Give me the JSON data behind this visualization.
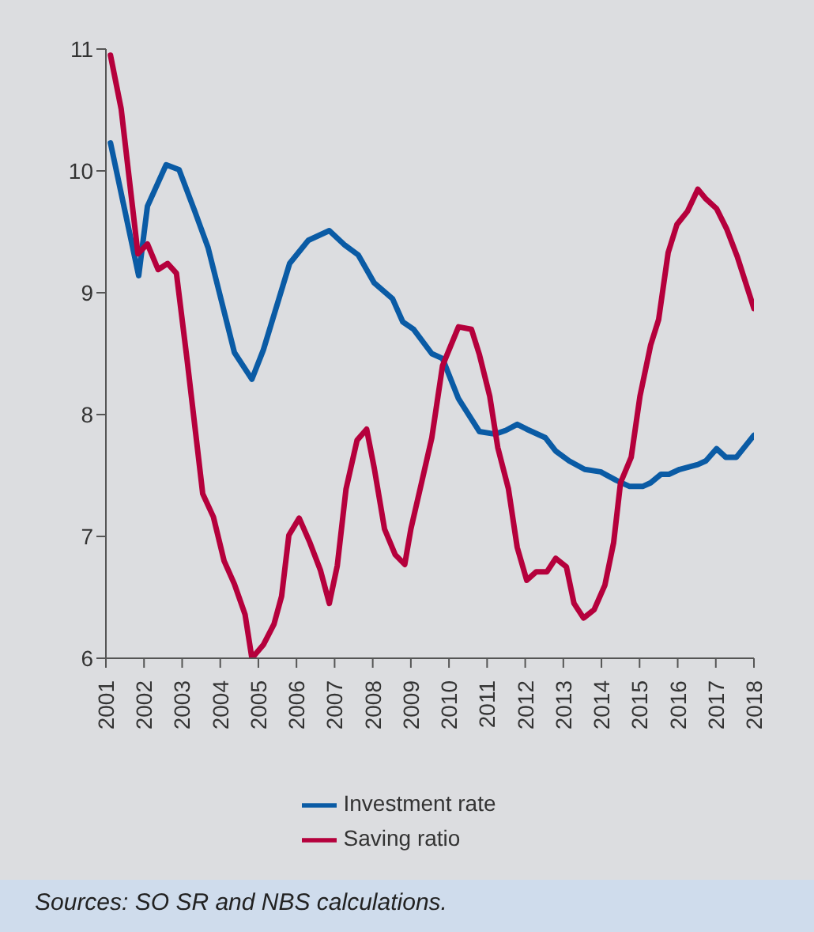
{
  "chart_data": {
    "type": "line",
    "xlim": [
      2001,
      2018
    ],
    "xticks": [
      2001,
      2002,
      2003,
      2004,
      2005,
      2006,
      2007,
      2008,
      2009,
      2010,
      2011,
      2012,
      2013,
      2014,
      2015,
      2016,
      2017,
      2018
    ],
    "ylim": [
      6,
      11
    ],
    "yticks": [
      6,
      7,
      8,
      9,
      10,
      11
    ],
    "grid": false,
    "legend": "bottom",
    "marker": "none",
    "line_style": "solid",
    "annotations": [
      "Sources: SO SR and NBS calculations."
    ],
    "series": [
      {
        "name": "Investment rate",
        "color": "#0a5ba5",
        "x": [
          2001.12,
          2001.86,
          2002.09,
          2002.58,
          2002.92,
          2003.33,
          2003.68,
          2004.37,
          2004.83,
          2005.13,
          2005.82,
          2006.31,
          2006.86,
          2007.27,
          2007.62,
          2008.04,
          2008.52,
          2008.79,
          2009.07,
          2009.55,
          2009.83,
          2010.25,
          2010.8,
          2011.21,
          2011.49,
          2011.79,
          2012.04,
          2012.53,
          2012.8,
          2013.15,
          2013.56,
          2013.98,
          2014.39,
          2014.74,
          2015.08,
          2015.29,
          2015.56,
          2015.77,
          2016.05,
          2016.53,
          2016.74,
          2017.02,
          2017.26,
          2017.54,
          2018
        ],
        "values": [
          10.23,
          9.14,
          9.71,
          10.05,
          10.01,
          9.67,
          9.37,
          8.51,
          8.29,
          8.53,
          9.24,
          9.43,
          9.51,
          9.39,
          9.31,
          9.08,
          8.95,
          8.76,
          8.7,
          8.5,
          8.46,
          8.13,
          7.86,
          7.84,
          7.87,
          7.92,
          7.88,
          7.81,
          7.7,
          7.62,
          7.55,
          7.53,
          7.46,
          7.41,
          7.41,
          7.44,
          7.51,
          7.51,
          7.55,
          7.59,
          7.62,
          7.72,
          7.65,
          7.65,
          7.83
        ]
      },
      {
        "name": "Saving ratio",
        "color": "#b5003c",
        "x": [
          2001.12,
          2001.4,
          2001.84,
          2002.09,
          2002.37,
          2002.62,
          2002.85,
          2003.13,
          2003.54,
          2003.82,
          2004.1,
          2004.37,
          2004.65,
          2004.83,
          2005.13,
          2005.41,
          2005.61,
          2005.8,
          2006.07,
          2006.35,
          2006.63,
          2006.86,
          2007.07,
          2007.3,
          2007.59,
          2007.84,
          2008.04,
          2008.31,
          2008.59,
          2008.84,
          2009.0,
          2009.28,
          2009.55,
          2009.83,
          2010.25,
          2010.59,
          2010.8,
          2011.07,
          2011.28,
          2011.56,
          2011.79,
          2012.04,
          2012.29,
          2012.57,
          2012.8,
          2013.08,
          2013.28,
          2013.53,
          2013.81,
          2014.09,
          2014.32,
          2014.5,
          2014.78,
          2015.01,
          2015.29,
          2015.5,
          2015.75,
          2015.98,
          2016.26,
          2016.53,
          2016.74,
          2017.02,
          2017.29,
          2017.57,
          2018
        ],
        "values": [
          10.95,
          10.51,
          9.32,
          9.4,
          9.19,
          9.24,
          9.16,
          8.45,
          7.35,
          7.16,
          6.8,
          6.61,
          6.36,
          6,
          6.11,
          6.28,
          6.51,
          7.01,
          7.15,
          6.95,
          6.72,
          6.45,
          6.76,
          7.39,
          7.79,
          7.88,
          7.56,
          7.06,
          6.85,
          6.77,
          7.06,
          7.44,
          7.81,
          8.4,
          8.72,
          8.7,
          8.49,
          8.15,
          7.73,
          7.39,
          6.91,
          6.64,
          6.71,
          6.71,
          6.82,
          6.75,
          6.45,
          6.33,
          6.4,
          6.6,
          6.95,
          7.44,
          7.65,
          8.15,
          8.57,
          8.78,
          9.33,
          9.56,
          9.67,
          9.85,
          9.77,
          9.69,
          9.52,
          9.29,
          8.87
        ]
      }
    ]
  }
}
